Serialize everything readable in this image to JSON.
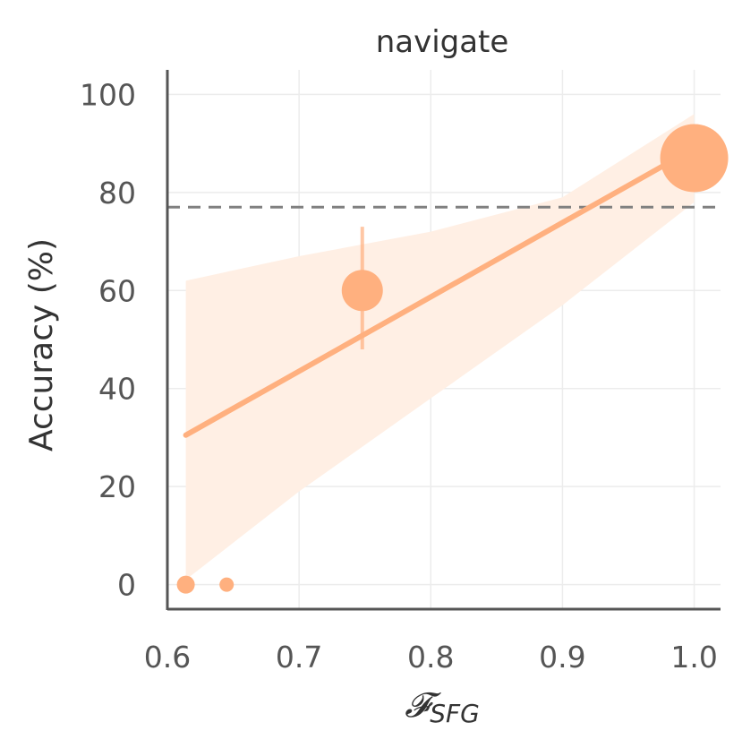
{
  "chart_data": {
    "type": "scatter",
    "title": "navigate",
    "xlabel": "𝓕",
    "xlabel_subscript": "SFG",
    "ylabel": "Accuracy (%)",
    "xlim": [
      0.6,
      1.02
    ],
    "ylim": [
      -5,
      105
    ],
    "xticks": [
      0.6,
      0.7,
      0.8,
      0.9,
      1.0
    ],
    "xtick_labels": [
      "0.6",
      "0.7",
      "0.8",
      "0.9",
      "1.0"
    ],
    "yticks": [
      0,
      20,
      40,
      60,
      80,
      100
    ],
    "ytick_labels": [
      "0",
      "20",
      "40",
      "60",
      "80",
      "100"
    ],
    "grid": true,
    "color": "#FFB07F",
    "band_color": "#FFEFE4",
    "reference_line_color": "#808080",
    "points": [
      {
        "x": 0.614,
        "y": 0,
        "size": "small"
      },
      {
        "x": 0.645,
        "y": 0,
        "size": "tiny"
      },
      {
        "x": 0.748,
        "y": 60,
        "size": "medium",
        "error_low": 48,
        "error_high": 73
      },
      {
        "x": 1.0,
        "y": 87,
        "size": "large"
      }
    ],
    "regression_line": {
      "x": [
        0.614,
        1.0
      ],
      "y": [
        30.5,
        89
      ]
    },
    "confidence_band": {
      "x": [
        0.614,
        0.7,
        0.8,
        0.9,
        1.0
      ],
      "upper": [
        62,
        67,
        72,
        79,
        96
      ],
      "lower": [
        1,
        19,
        38,
        57,
        78
      ]
    },
    "reference_line": {
      "y": 77
    }
  }
}
